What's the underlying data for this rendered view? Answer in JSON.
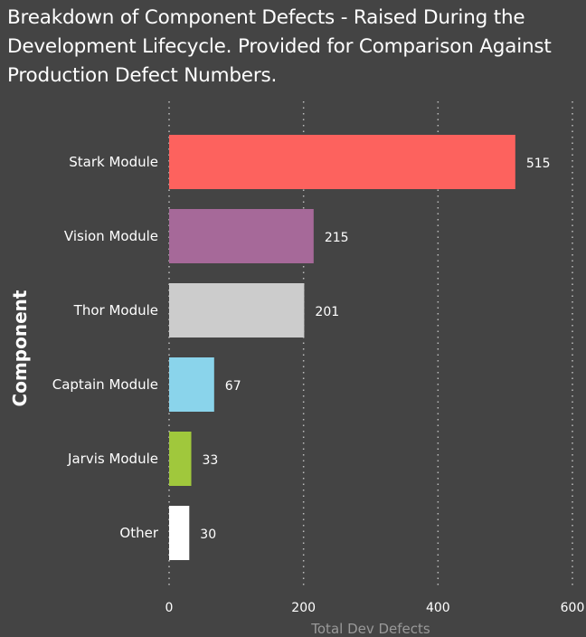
{
  "chart_data": {
    "type": "bar",
    "orientation": "horizontal",
    "title": "Breakdown of Component Defects - Raised During the Development Lifecycle. Provided for Comparison Against Production Defect Numbers.",
    "ylabel": "Component",
    "xlabel": "Total Dev Defects",
    "categories": [
      "Stark Module",
      "Vision Module",
      "Thor Module",
      "Captain Module",
      "Jarvis Module",
      "Other"
    ],
    "values": [
      515,
      215,
      201,
      67,
      33,
      30
    ],
    "colors": [
      "#fd625e",
      "#a66999",
      "#cccccc",
      "#8ad4eb",
      "#a0c83c",
      "#ffffff"
    ],
    "xlim": [
      0,
      600
    ],
    "xticks": [
      0,
      200,
      400,
      600
    ],
    "grid": "vertical dotted",
    "data_labels": true
  }
}
